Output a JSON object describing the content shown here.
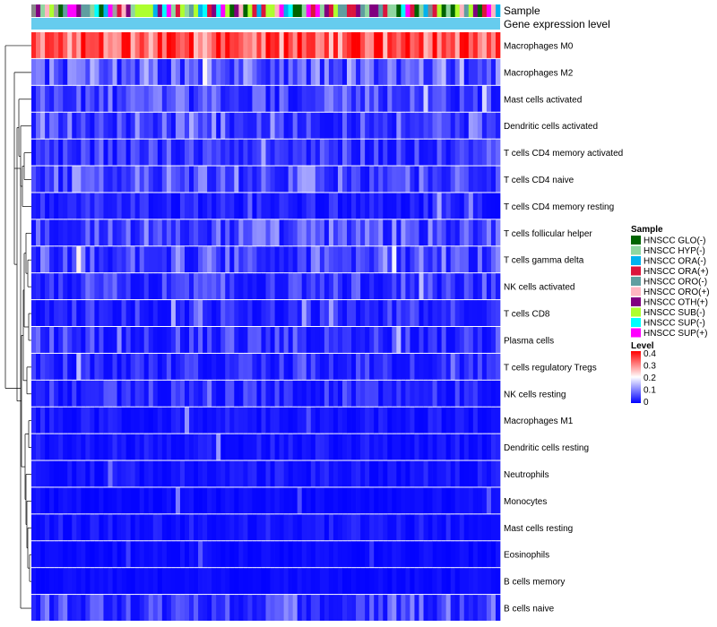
{
  "chart_data": {
    "type": "heatmap",
    "title": "",
    "annotation_labels": {
      "sample": "Sample",
      "gene": "Gene expression level"
    },
    "rows": [
      "Macrophages M0",
      "Macrophages M2",
      "Mast cells activated",
      "Dendritic cells activated",
      "T cells CD4 memory activated",
      "T cells CD4 naive",
      "T cells CD4 memory resting",
      "T cells follicular helper",
      "T cells gamma delta",
      "NK cells activated",
      "T cells CD8",
      "Plasma cells",
      "T cells regulatory  Tregs",
      "NK cells resting",
      "Macrophages M1",
      "Dendritic cells resting",
      "Neutrophils",
      "Monocytes",
      "Mast cells resting",
      "Eosinophils",
      "B cells memory",
      "B cells naive"
    ],
    "row_mean_levels": [
      0.32,
      0.08,
      0.06,
      0.07,
      0.05,
      0.07,
      0.03,
      0.07,
      0.07,
      0.05,
      0.04,
      0.05,
      0.04,
      0.04,
      0.02,
      0.02,
      0.02,
      0.01,
      0.02,
      0.01,
      0.01,
      0.06
    ],
    "n_samples": 104,
    "sample_groups": [
      {
        "name": "HNSCC GLO(-)",
        "color": "#006400"
      },
      {
        "name": "HNSCC HYP(-)",
        "color": "#8fd7a0"
      },
      {
        "name": "HNSCC ORA(-)",
        "color": "#00b2ee"
      },
      {
        "name": "HNSCC ORA(+)",
        "color": "#dc143c"
      },
      {
        "name": "HNSCC ORO(-)",
        "color": "#5f9ea0"
      },
      {
        "name": "HNSCC ORO(+)",
        "color": "#ffb6c1"
      },
      {
        "name": "HNSCC OTH(+)",
        "color": "#800080"
      },
      {
        "name": "HNSCC SUB(-)",
        "color": "#adff2f"
      },
      {
        "name": "HNSCC SUP(-)",
        "color": "#00ffff"
      },
      {
        "name": "HNSCC SUP(+)",
        "color": "#ff00ff"
      }
    ],
    "gene_level_color": "#66ccee",
    "color_scale": {
      "title": "Level",
      "min": 0,
      "max": 0.4,
      "ticks": [
        "0.4",
        "0.3",
        "0.2",
        "0.1",
        "0"
      ],
      "colors": [
        "#0000ff",
        "#ffffff",
        "#ff0000"
      ]
    },
    "legend": {
      "sample_title": "Sample",
      "position": "right"
    }
  }
}
